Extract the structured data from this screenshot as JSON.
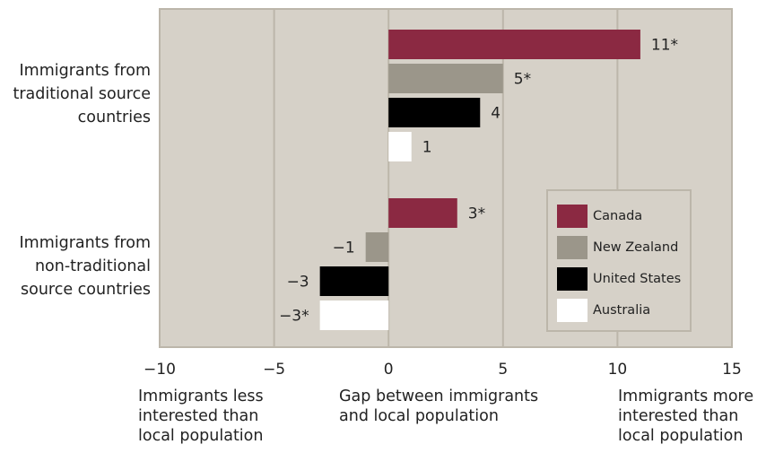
{
  "chart_data": {
    "type": "bar",
    "orientation": "horizontal",
    "title": "",
    "xlim": [
      -10,
      15
    ],
    "xticks": [
      "−10",
      "−5",
      "0",
      "5",
      "10",
      "15"
    ],
    "grid": true,
    "legend_placement": "bottom-right inside",
    "categories": [
      "Immigrants from traditional source countries",
      "Immigrants from non-traditional source countries"
    ],
    "series": [
      {
        "name": "Canada",
        "color": "#8b2942",
        "values": [
          11,
          3
        ],
        "labels": [
          "11*",
          "3*"
        ]
      },
      {
        "name": "New Zealand",
        "color": "#9b968a",
        "values": [
          5,
          -1
        ],
        "labels": [
          "5*",
          "−1"
        ]
      },
      {
        "name": "United States",
        "color": "#000000",
        "values": [
          4,
          -3
        ],
        "labels": [
          "4",
          "−3"
        ]
      },
      {
        "name": "Australia",
        "color": "#ffffff",
        "values": [
          1,
          -3
        ],
        "labels": [
          "1",
          "−3*"
        ]
      }
    ],
    "x_annotations": {
      "left": "Immigrants less interested than local population",
      "center": "Gap between immigrants and local population",
      "right": "Immigrants more interested than local population"
    }
  },
  "category_lines": [
    [
      "Immigrants from",
      "traditional source",
      "countries"
    ],
    [
      "Immigrants from",
      "non-traditional",
      "source countries"
    ]
  ],
  "below_lines": {
    "left": [
      "Immigrants less",
      "interested than",
      "local population"
    ],
    "center": [
      "Gap between immigrants",
      "and local population"
    ],
    "right": [
      "Immigrants more",
      "interested than",
      "local population"
    ]
  },
  "colors": {
    "plot_background": "#d6d1c8",
    "axis": "#bcb6aa"
  }
}
